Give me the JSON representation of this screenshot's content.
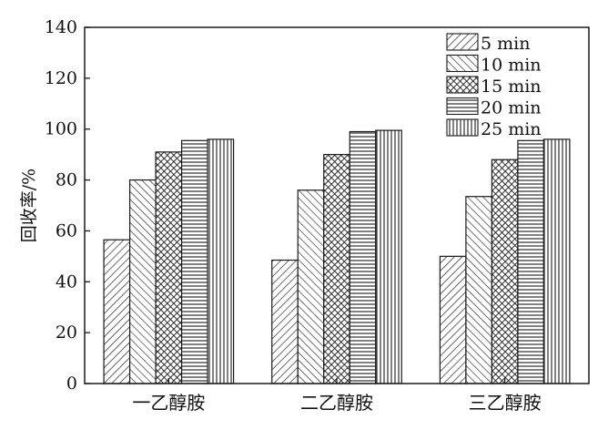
{
  "chart_data": {
    "type": "bar",
    "categories": [
      "一乙醇胺",
      "二乙醇胺",
      "三乙醇胺"
    ],
    "ylabel": "回收率/%",
    "xlabel": "",
    "ylim": [
      0,
      140
    ],
    "yticks": [
      0,
      20,
      40,
      60,
      80,
      100,
      120,
      140
    ],
    "grid": false,
    "legend_position": "top-right",
    "series": [
      {
        "name": "5 min",
        "pattern": "diag-right",
        "values": [
          56.5,
          48.5,
          50.0
        ]
      },
      {
        "name": "10 min",
        "pattern": "diag-left",
        "values": [
          80.0,
          76.0,
          73.5
        ]
      },
      {
        "name": "15 min",
        "pattern": "crosshatch",
        "values": [
          91.0,
          90.0,
          88.0
        ]
      },
      {
        "name": "20 min",
        "pattern": "horizontal",
        "values": [
          95.5,
          99.0,
          95.5
        ]
      },
      {
        "name": "25 min",
        "pattern": "vertical",
        "values": [
          96.0,
          99.5,
          96.0
        ]
      }
    ],
    "colors": {
      "ink": "#1a1a1a",
      "background": "#ffffff"
    }
  }
}
